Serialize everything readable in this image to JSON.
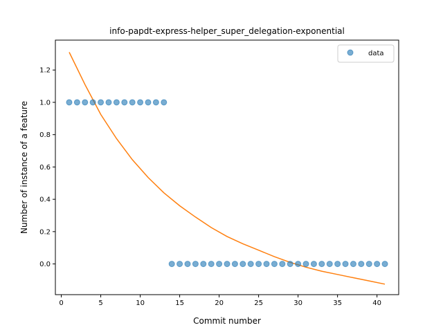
{
  "chart_data": {
    "type": "scatter",
    "title": "info-papdt-express-helper_super_delegation-exponential",
    "xlabel": "Commit number",
    "ylabel": "Number of instance of a feature",
    "xlim": [
      -0.75,
      42.75
    ],
    "ylim": [
      -0.19,
      1.385
    ],
    "xticks": [
      0,
      5,
      10,
      15,
      20,
      25,
      30,
      35,
      40
    ],
    "yticks": [
      0.0,
      0.2,
      0.4,
      0.6,
      0.8,
      1.0,
      1.2
    ],
    "ytick_labels": [
      "0.0",
      "0.2",
      "0.4",
      "0.6",
      "0.8",
      "1.0",
      "1.2"
    ],
    "grid": false,
    "legend": {
      "placement": "top-right",
      "entries": [
        "data"
      ]
    },
    "series": [
      {
        "name": "data",
        "kind": "scatter",
        "color": "#1f77b4",
        "x": [
          1,
          2,
          3,
          4,
          5,
          6,
          7,
          8,
          9,
          10,
          11,
          12,
          13,
          14,
          15,
          16,
          17,
          18,
          19,
          20,
          21,
          22,
          23,
          24,
          25,
          26,
          27,
          28,
          29,
          30,
          31,
          32,
          33,
          34,
          35,
          36,
          37,
          38,
          39,
          40,
          41
        ],
        "y": [
          1,
          1,
          1,
          1,
          1,
          1,
          1,
          1,
          1,
          1,
          1,
          1,
          1,
          0,
          0,
          0,
          0,
          0,
          0,
          0,
          0,
          0,
          0,
          0,
          0,
          0,
          0,
          0,
          0,
          0,
          0,
          0,
          0,
          0,
          0,
          0,
          0,
          0,
          0,
          0,
          0
        ]
      },
      {
        "kind": "line",
        "color": "#ff7f0e",
        "x": [
          1,
          3,
          5,
          7,
          9,
          11,
          13,
          15,
          17,
          19,
          21,
          23,
          25,
          27,
          29,
          31,
          33,
          35,
          37,
          39,
          41
        ],
        "y": [
          1.31,
          1.11,
          0.925,
          0.775,
          0.645,
          0.535,
          0.44,
          0.36,
          0.29,
          0.225,
          0.17,
          0.125,
          0.085,
          0.045,
          0.01,
          -0.02,
          -0.045,
          -0.065,
          -0.085,
          -0.105,
          -0.125
        ]
      }
    ]
  }
}
